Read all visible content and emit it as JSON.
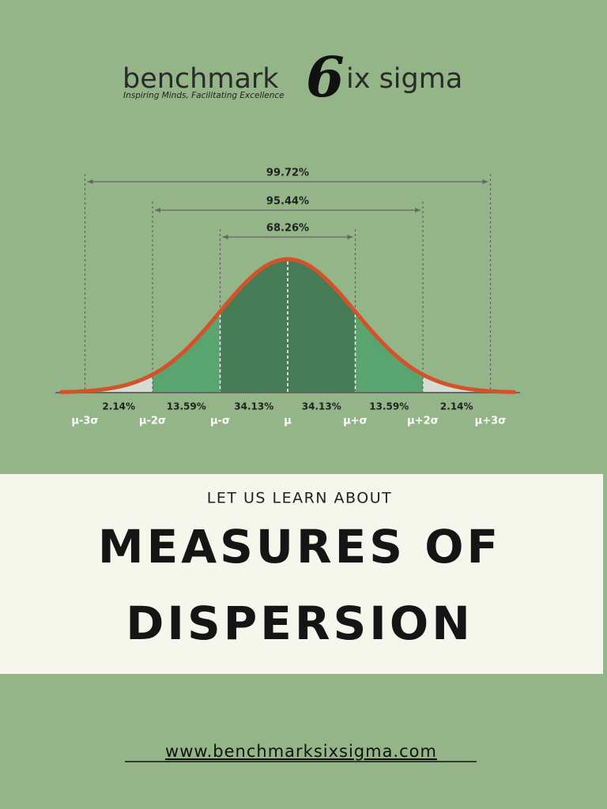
{
  "logo": {
    "brand_left": "benchmark",
    "brand_mark": "6",
    "brand_right": "ix sigma",
    "tagline": "Inspiring Minds, Facilitating Excellence"
  },
  "diagram": {
    "ranges": [
      "99.72%",
      "95.44%",
      "68.26%"
    ],
    "segments": [
      "2.14%",
      "13.59%",
      "34.13%",
      "34.13%",
      "13.59%",
      "2.14%"
    ],
    "sigma_labels": [
      "μ-3σ",
      "μ-2σ",
      "μ-σ",
      "μ",
      "μ+σ",
      "μ+2σ",
      "μ+3σ"
    ]
  },
  "banner": {
    "intro": "LET US LEARN ABOUT",
    "title_lines": [
      "MEASURES OF",
      "DISPERSION"
    ]
  },
  "footer": {
    "url": "www.benchmarksixsigma.com"
  }
}
